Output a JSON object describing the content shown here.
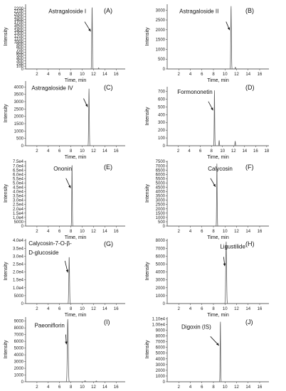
{
  "chart_data": [
    {
      "panel_label": "(A)",
      "type": "line",
      "compound": "Astragaloside I",
      "xlabel": "Time, min",
      "ylabel": "Intensity",
      "xlim": [
        0,
        17.6
      ],
      "ylim": [
        0,
        2350
      ],
      "xticks": [
        2,
        4,
        6,
        8,
        10,
        12,
        14,
        16
      ],
      "yticks": [
        0,
        100,
        200,
        300,
        400,
        500,
        600,
        700,
        800,
        900,
        1000,
        1100,
        1200,
        1300,
        1400,
        1500,
        1600,
        1700,
        1800,
        1900,
        2000,
        2100,
        2200
      ],
      "ytick_labels": [
        "0",
        "100",
        "200",
        "300",
        "400",
        "500",
        "600",
        "700",
        "800",
        "900",
        "1000",
        "1100",
        "1200",
        "1300",
        "1400",
        "1500",
        "1600",
        "1700",
        "1800",
        "1900",
        "2000",
        "2100",
        "2200"
      ],
      "peaks": [
        {
          "rt": 11.75,
          "height": 2300,
          "width": 0.12
        },
        {
          "rt": 12.9,
          "height": 40,
          "width": 0.1
        }
      ],
      "arrow_at": 11.75
    },
    {
      "panel_label": "(B)",
      "type": "line",
      "compound": "Astragaloside II",
      "xlabel": "Time, min",
      "ylabel": "Intensity",
      "xlim": [
        0,
        17.6
      ],
      "ylim": [
        0,
        3300
      ],
      "xticks": [
        2,
        4,
        6,
        8,
        10,
        12,
        14,
        16
      ],
      "yticks": [
        0,
        500,
        1000,
        1500,
        2000,
        2500,
        3000
      ],
      "ytick_labels": [
        "0",
        "500",
        "1000",
        "1500",
        "2000",
        "2500",
        "3000"
      ],
      "peaks": [
        {
          "rt": 11.05,
          "height": 3250,
          "width": 0.12
        },
        {
          "rt": 11.8,
          "height": 90,
          "width": 0.1
        }
      ],
      "arrow_at": 11.05
    },
    {
      "panel_label": "(C)",
      "type": "line",
      "compound": "Astragaloside IV",
      "xlabel": "Time, min",
      "ylabel": "Intensity",
      "xlim": [
        0,
        17.6
      ],
      "ylim": [
        0,
        4400
      ],
      "xticks": [
        2,
        4,
        6,
        8,
        10,
        12,
        14,
        16
      ],
      "yticks": [
        0,
        500,
        1000,
        1500,
        2000,
        2500,
        3000,
        3500,
        4000
      ],
      "ytick_labels": [
        "0",
        "500",
        "1000",
        "1500",
        "2000",
        "2500",
        "3000",
        "3500",
        "4000"
      ],
      "peaks": [
        {
          "rt": 11.2,
          "height": 3900,
          "width": 0.12
        }
      ],
      "arrow_at": 11.2
    },
    {
      "panel_label": "(D)",
      "type": "line",
      "compound": "Formononetin",
      "xlabel": "Time, min",
      "ylabel": "Intensity",
      "xlim": [
        0,
        18.4
      ],
      "ylim": [
        0,
        760
      ],
      "xticks": [
        2,
        4,
        6,
        8,
        10,
        12,
        14,
        16,
        18
      ],
      "yticks": [
        0,
        100,
        200,
        300,
        400,
        500,
        600,
        700
      ],
      "ytick_labels": [
        "0",
        "100",
        "200",
        "300",
        "400",
        "500",
        "600",
        "700"
      ],
      "peaks": [
        {
          "rt": 8.55,
          "height": 720,
          "width": 0.1
        },
        {
          "rt": 9.4,
          "height": 70,
          "width": 0.1
        },
        {
          "rt": 12.3,
          "height": 60,
          "width": 0.1
        }
      ],
      "arrow_at": 8.55
    },
    {
      "panel_label": "(E)",
      "type": "line",
      "compound": "Ononin",
      "xlabel": "Time, min",
      "ylabel": "Intensity",
      "xlim": [
        0,
        17.6
      ],
      "ylim": [
        0,
        76000
      ],
      "xticks": [
        2,
        4,
        6,
        8,
        10,
        12,
        14,
        16
      ],
      "yticks": [
        0,
        5000,
        10000,
        15000,
        20000,
        25000,
        30000,
        35000,
        40000,
        45000,
        50000,
        55000,
        60000,
        65000,
        70000,
        75000
      ],
      "ytick_labels": [
        "0",
        "5000",
        "1.0e4",
        "1.5e4",
        "2.0e4",
        "2.5e4",
        "3.0e4",
        "3.5e4",
        "4.0e4",
        "4.5e4",
        "5.0e4",
        "5.5e4",
        "6.0e4",
        "6.5e4",
        "7.0e4",
        "7.5e4"
      ],
      "peaks": [
        {
          "rt": 8.2,
          "height": 74000,
          "width": 0.1
        }
      ],
      "arrow_at": 8.2
    },
    {
      "panel_label": "(F)",
      "type": "line",
      "compound": "Calycosin",
      "xlabel": "Time, min",
      "ylabel": "Intensity",
      "xlim": [
        0,
        17.6
      ],
      "ylim": [
        0,
        7600
      ],
      "xticks": [
        2,
        4,
        6,
        8,
        10,
        12,
        14,
        16
      ],
      "yticks": [
        0,
        500,
        1000,
        1500,
        2000,
        2500,
        3000,
        3500,
        4000,
        4500,
        5000,
        5500,
        6000,
        6500,
        7000,
        7500
      ],
      "ytick_labels": [
        "0",
        "500",
        "1000",
        "1500",
        "2000",
        "2500",
        "3000",
        "3500",
        "4000",
        "4500",
        "5000",
        "5500",
        "6000",
        "6500",
        "7000",
        "7500"
      ],
      "peaks": [
        {
          "rt": 8.6,
          "height": 7300,
          "width": 0.1
        }
      ],
      "arrow_at": 8.6
    },
    {
      "panel_label": "(G)",
      "type": "line",
      "compound": "Calycosin-7-O-β-D-glucoside",
      "compound_lines": [
        "Calycosin-7-O-β-",
        "D-glucoside"
      ],
      "xlabel": "Time, min",
      "ylabel": "Intensity",
      "xlim": [
        0,
        17.6
      ],
      "ylim": [
        0,
        41000
      ],
      "xticks": [
        2,
        4,
        6,
        8,
        10,
        12,
        14,
        16
      ],
      "yticks": [
        0,
        5000,
        10000,
        15000,
        20000,
        25000,
        30000,
        35000,
        40000
      ],
      "ytick_labels": [
        "0",
        "5000",
        "1.0e4",
        "1.5e4",
        "2.0e4",
        "2.5e4",
        "3.0e4",
        "3.5e4",
        "4.0e4"
      ],
      "peaks": [
        {
          "rt": 7.7,
          "height": 30000,
          "width": 0.14
        }
      ],
      "arrow_at": 7.7
    },
    {
      "panel_label": "(H)",
      "type": "line",
      "compound": "Ligustilide",
      "xlabel": "Time, min",
      "ylabel": "Intensity",
      "xlim": [
        0,
        17.6
      ],
      "ylim": [
        0,
        8200
      ],
      "xticks": [
        2,
        4,
        6,
        8,
        10,
        12,
        14,
        16
      ],
      "yticks": [
        0,
        1000,
        2000,
        3000,
        4000,
        5000,
        6000,
        7000,
        8000
      ],
      "ytick_labels": [
        "0",
        "1000",
        "2000",
        "3000",
        "4000",
        "5000",
        "6000",
        "7000",
        "8000"
      ],
      "peaks": [
        {
          "rt": 10.2,
          "height": 7900,
          "width": 0.16
        }
      ],
      "arrow_at": 10.2
    },
    {
      "panel_label": "(I)",
      "type": "line",
      "compound": "Paeoniflorin",
      "xlabel": "Time, min",
      "ylabel": "Intensity",
      "xlim": [
        0,
        17.6
      ],
      "ylim": [
        0,
        9600
      ],
      "xticks": [
        2,
        4,
        6,
        8,
        10,
        12,
        14,
        16
      ],
      "yticks": [
        0,
        1000,
        2000,
        3000,
        4000,
        5000,
        6000,
        7000,
        8000,
        9000
      ],
      "ytick_labels": [
        "0",
        "1000",
        "2000",
        "3000",
        "4000",
        "5000",
        "6000",
        "7000",
        "8000",
        "9000"
      ],
      "peaks": [
        {
          "rt": 7.45,
          "height": 9300,
          "width": 0.18
        },
        {
          "rt": 10.5,
          "height": 150,
          "width": 0.15
        },
        {
          "rt": 12.5,
          "height": 120,
          "width": 0.15
        }
      ],
      "arrow_at": 7.45
    },
    {
      "panel_label": "(J)",
      "type": "line",
      "compound": "Digoxin (IS)",
      "xlabel": "Time, min",
      "ylabel": "Intensity",
      "xlim": [
        0,
        17.6
      ],
      "ylim": [
        0,
        11300
      ],
      "xticks": [
        2,
        4,
        6,
        8,
        10,
        12,
        14,
        16
      ],
      "yticks": [
        0,
        1000,
        2000,
        3000,
        4000,
        5000,
        6000,
        7000,
        8000,
        9000,
        10000,
        11000
      ],
      "ytick_labels": [
        "0",
        "1000",
        "2000",
        "3000",
        "4000",
        "5000",
        "6000",
        "7000",
        "8000",
        "9000",
        "1.00e4",
        "1.10e4"
      ],
      "peaks": [
        {
          "rt": 9.2,
          "height": 10800,
          "width": 0.1
        }
      ],
      "arrow_at": 9.2
    }
  ]
}
